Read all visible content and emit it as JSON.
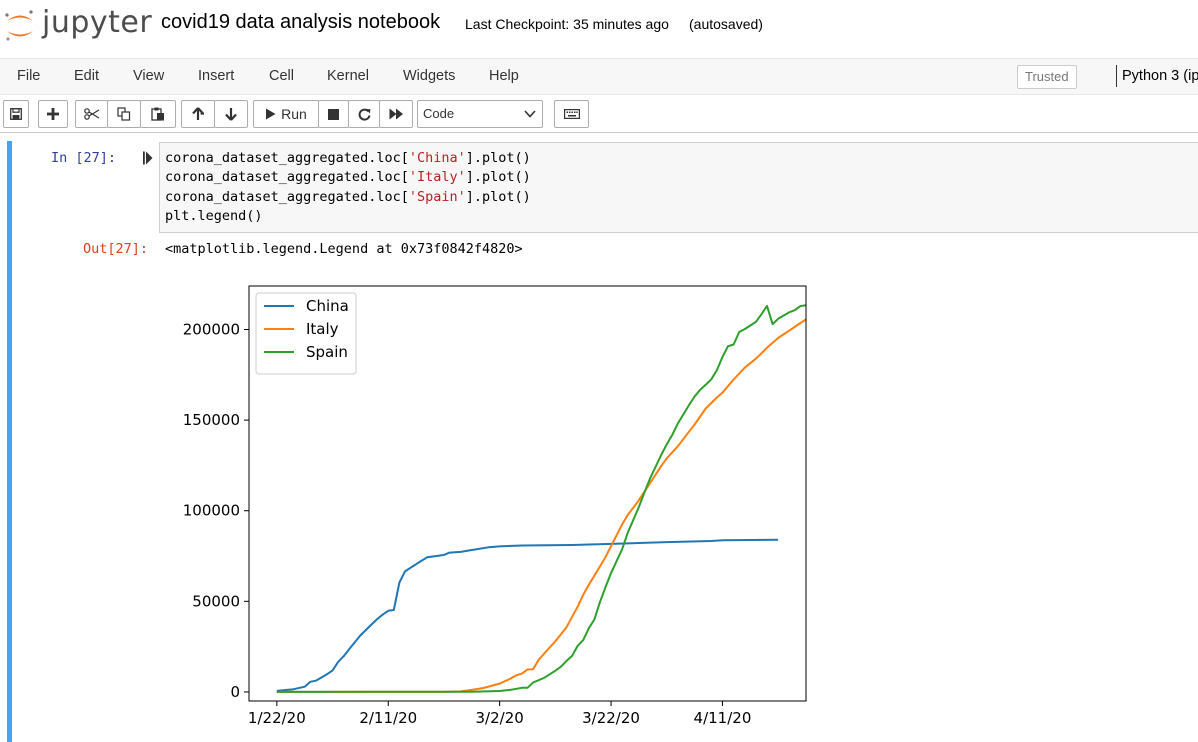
{
  "header": {
    "logo_text": "jupyter",
    "notebook_title": "covid19 data analysis notebook",
    "checkpoint": "Last Checkpoint: 35 minutes ago",
    "autosave": "(autosaved)"
  },
  "menu": {
    "items": [
      "File",
      "Edit",
      "View",
      "Insert",
      "Cell",
      "Kernel",
      "Widgets",
      "Help"
    ],
    "trusted": "Trusted",
    "kernel": "Python 3 (ip"
  },
  "toolbar": {
    "run_label": "Run",
    "cell_type": "Code",
    "icons": [
      "save-icon",
      "plus-icon",
      "cut-icon",
      "copy-icon",
      "paste-icon",
      "arrow-up-icon",
      "arrow-down-icon",
      "play-icon",
      "stop-icon",
      "restart-icon",
      "fast-forward-icon",
      "keyboard-icon"
    ]
  },
  "cell": {
    "in_prompt": "In [27]:",
    "code_lines": [
      {
        "pre": "corona_dataset_aggregated.loc[",
        "str": "'China'",
        "post": "].plot()"
      },
      {
        "pre": "corona_dataset_aggregated.loc[",
        "str": "'Italy'",
        "post": "].plot()"
      },
      {
        "pre": "corona_dataset_aggregated.loc[",
        "str": "'Spain'",
        "post": "].plot()"
      },
      {
        "pre": "plt.legend()",
        "str": "",
        "post": ""
      }
    ],
    "out_prompt": "Out[27]:",
    "out_text": "<matplotlib.legend.Legend at 0x73f0842f4820>"
  },
  "chart_data": {
    "type": "line",
    "title": "",
    "xlabel": "",
    "ylabel": "",
    "x_ticks": [
      "1/22/20",
      "2/11/20",
      "3/2/20",
      "3/22/20",
      "4/11/20"
    ],
    "y_ticks": [
      "0",
      "50000",
      "100000",
      "150000",
      "200000"
    ],
    "ylim": [
      -5000,
      224000
    ],
    "xlim": [
      -5,
      95
    ],
    "legend_position": "top-left",
    "grid": false,
    "series": [
      {
        "name": "China",
        "color": "#1f77b4",
        "points": [
          [
            0,
            548
          ],
          [
            3,
            1500
          ],
          [
            5,
            2900
          ],
          [
            6,
            5600
          ],
          [
            7,
            6200
          ],
          [
            9,
            9800
          ],
          [
            10,
            11900
          ],
          [
            11,
            16600
          ],
          [
            12,
            19700
          ],
          [
            13,
            23700
          ],
          [
            15,
            31200
          ],
          [
            17,
            37200
          ],
          [
            18,
            40200
          ],
          [
            19,
            42700
          ],
          [
            20,
            44800
          ],
          [
            21,
            45200
          ],
          [
            22,
            60400
          ],
          [
            23,
            66500
          ],
          [
            25,
            70500
          ],
          [
            26,
            72500
          ],
          [
            27,
            74300
          ],
          [
            29,
            75200
          ],
          [
            30,
            75600
          ],
          [
            31,
            76900
          ],
          [
            33,
            77300
          ],
          [
            35,
            78300
          ],
          [
            38,
            79800
          ],
          [
            40,
            80300
          ],
          [
            44,
            80800
          ],
          [
            53,
            81100
          ],
          [
            60,
            81700
          ],
          [
            70,
            82700
          ],
          [
            78,
            83300
          ],
          [
            80,
            83700
          ],
          [
            90,
            84000
          ]
        ]
      },
      {
        "name": "Italy",
        "color": "#ff7f0e",
        "points": [
          [
            0,
            0
          ],
          [
            30,
            20
          ],
          [
            33,
            300
          ],
          [
            35,
            1100
          ],
          [
            37,
            2100
          ],
          [
            39,
            3800
          ],
          [
            40,
            4600
          ],
          [
            42,
            7400
          ],
          [
            43,
            9200
          ],
          [
            44,
            10100
          ],
          [
            45,
            12400
          ],
          [
            46,
            12500
          ],
          [
            47,
            17700
          ],
          [
            48,
            21200
          ],
          [
            50,
            27980
          ],
          [
            52,
            35700
          ],
          [
            54,
            47000
          ],
          [
            55,
            53600
          ],
          [
            56,
            59100
          ],
          [
            58,
            69200
          ],
          [
            59,
            74400
          ],
          [
            60,
            80500
          ],
          [
            62,
            92500
          ],
          [
            63,
            97700
          ],
          [
            65,
            105800
          ],
          [
            67,
            115200
          ],
          [
            69,
            124600
          ],
          [
            70,
            128900
          ],
          [
            72,
            135600
          ],
          [
            74,
            143600
          ],
          [
            75,
            147600
          ],
          [
            77,
            156400
          ],
          [
            79,
            162500
          ],
          [
            80,
            165200
          ],
          [
            82,
            172400
          ],
          [
            84,
            178900
          ],
          [
            86,
            183900
          ],
          [
            88,
            189900
          ],
          [
            90,
            195300
          ],
          [
            92,
            199400
          ],
          [
            94,
            203600
          ],
          [
            95,
            205500
          ]
        ]
      },
      {
        "name": "Spain",
        "color": "#2ca02c",
        "points": [
          [
            0,
            0
          ],
          [
            35,
            150
          ],
          [
            40,
            500
          ],
          [
            42,
            1200
          ],
          [
            44,
            2300
          ],
          [
            45,
            2300
          ],
          [
            46,
            5200
          ],
          [
            48,
            7800
          ],
          [
            50,
            11700
          ],
          [
            51,
            13900
          ],
          [
            52,
            17100
          ],
          [
            53,
            19900
          ],
          [
            54,
            25400
          ],
          [
            55,
            28600
          ],
          [
            56,
            35100
          ],
          [
            57,
            39900
          ],
          [
            58,
            49500
          ],
          [
            59,
            57800
          ],
          [
            60,
            65700
          ],
          [
            62,
            78800
          ],
          [
            63,
            87950
          ],
          [
            65,
            102100
          ],
          [
            66,
            110200
          ],
          [
            67,
            117700
          ],
          [
            69,
            130750
          ],
          [
            70,
            136700
          ],
          [
            71,
            141900
          ],
          [
            72,
            148200
          ],
          [
            74,
            158300
          ],
          [
            75,
            163000
          ],
          [
            76,
            166800
          ],
          [
            77,
            169500
          ],
          [
            78,
            172500
          ],
          [
            79,
            177600
          ],
          [
            80,
            184900
          ],
          [
            81,
            190800
          ],
          [
            82,
            191700
          ],
          [
            83,
            198600
          ],
          [
            84,
            200200
          ],
          [
            86,
            204200
          ],
          [
            87,
            208400
          ],
          [
            88,
            213000
          ],
          [
            89,
            202990
          ],
          [
            90,
            205900
          ],
          [
            92,
            209500
          ],
          [
            93,
            210700
          ],
          [
            94,
            212900
          ],
          [
            95,
            213400
          ]
        ]
      }
    ]
  }
}
